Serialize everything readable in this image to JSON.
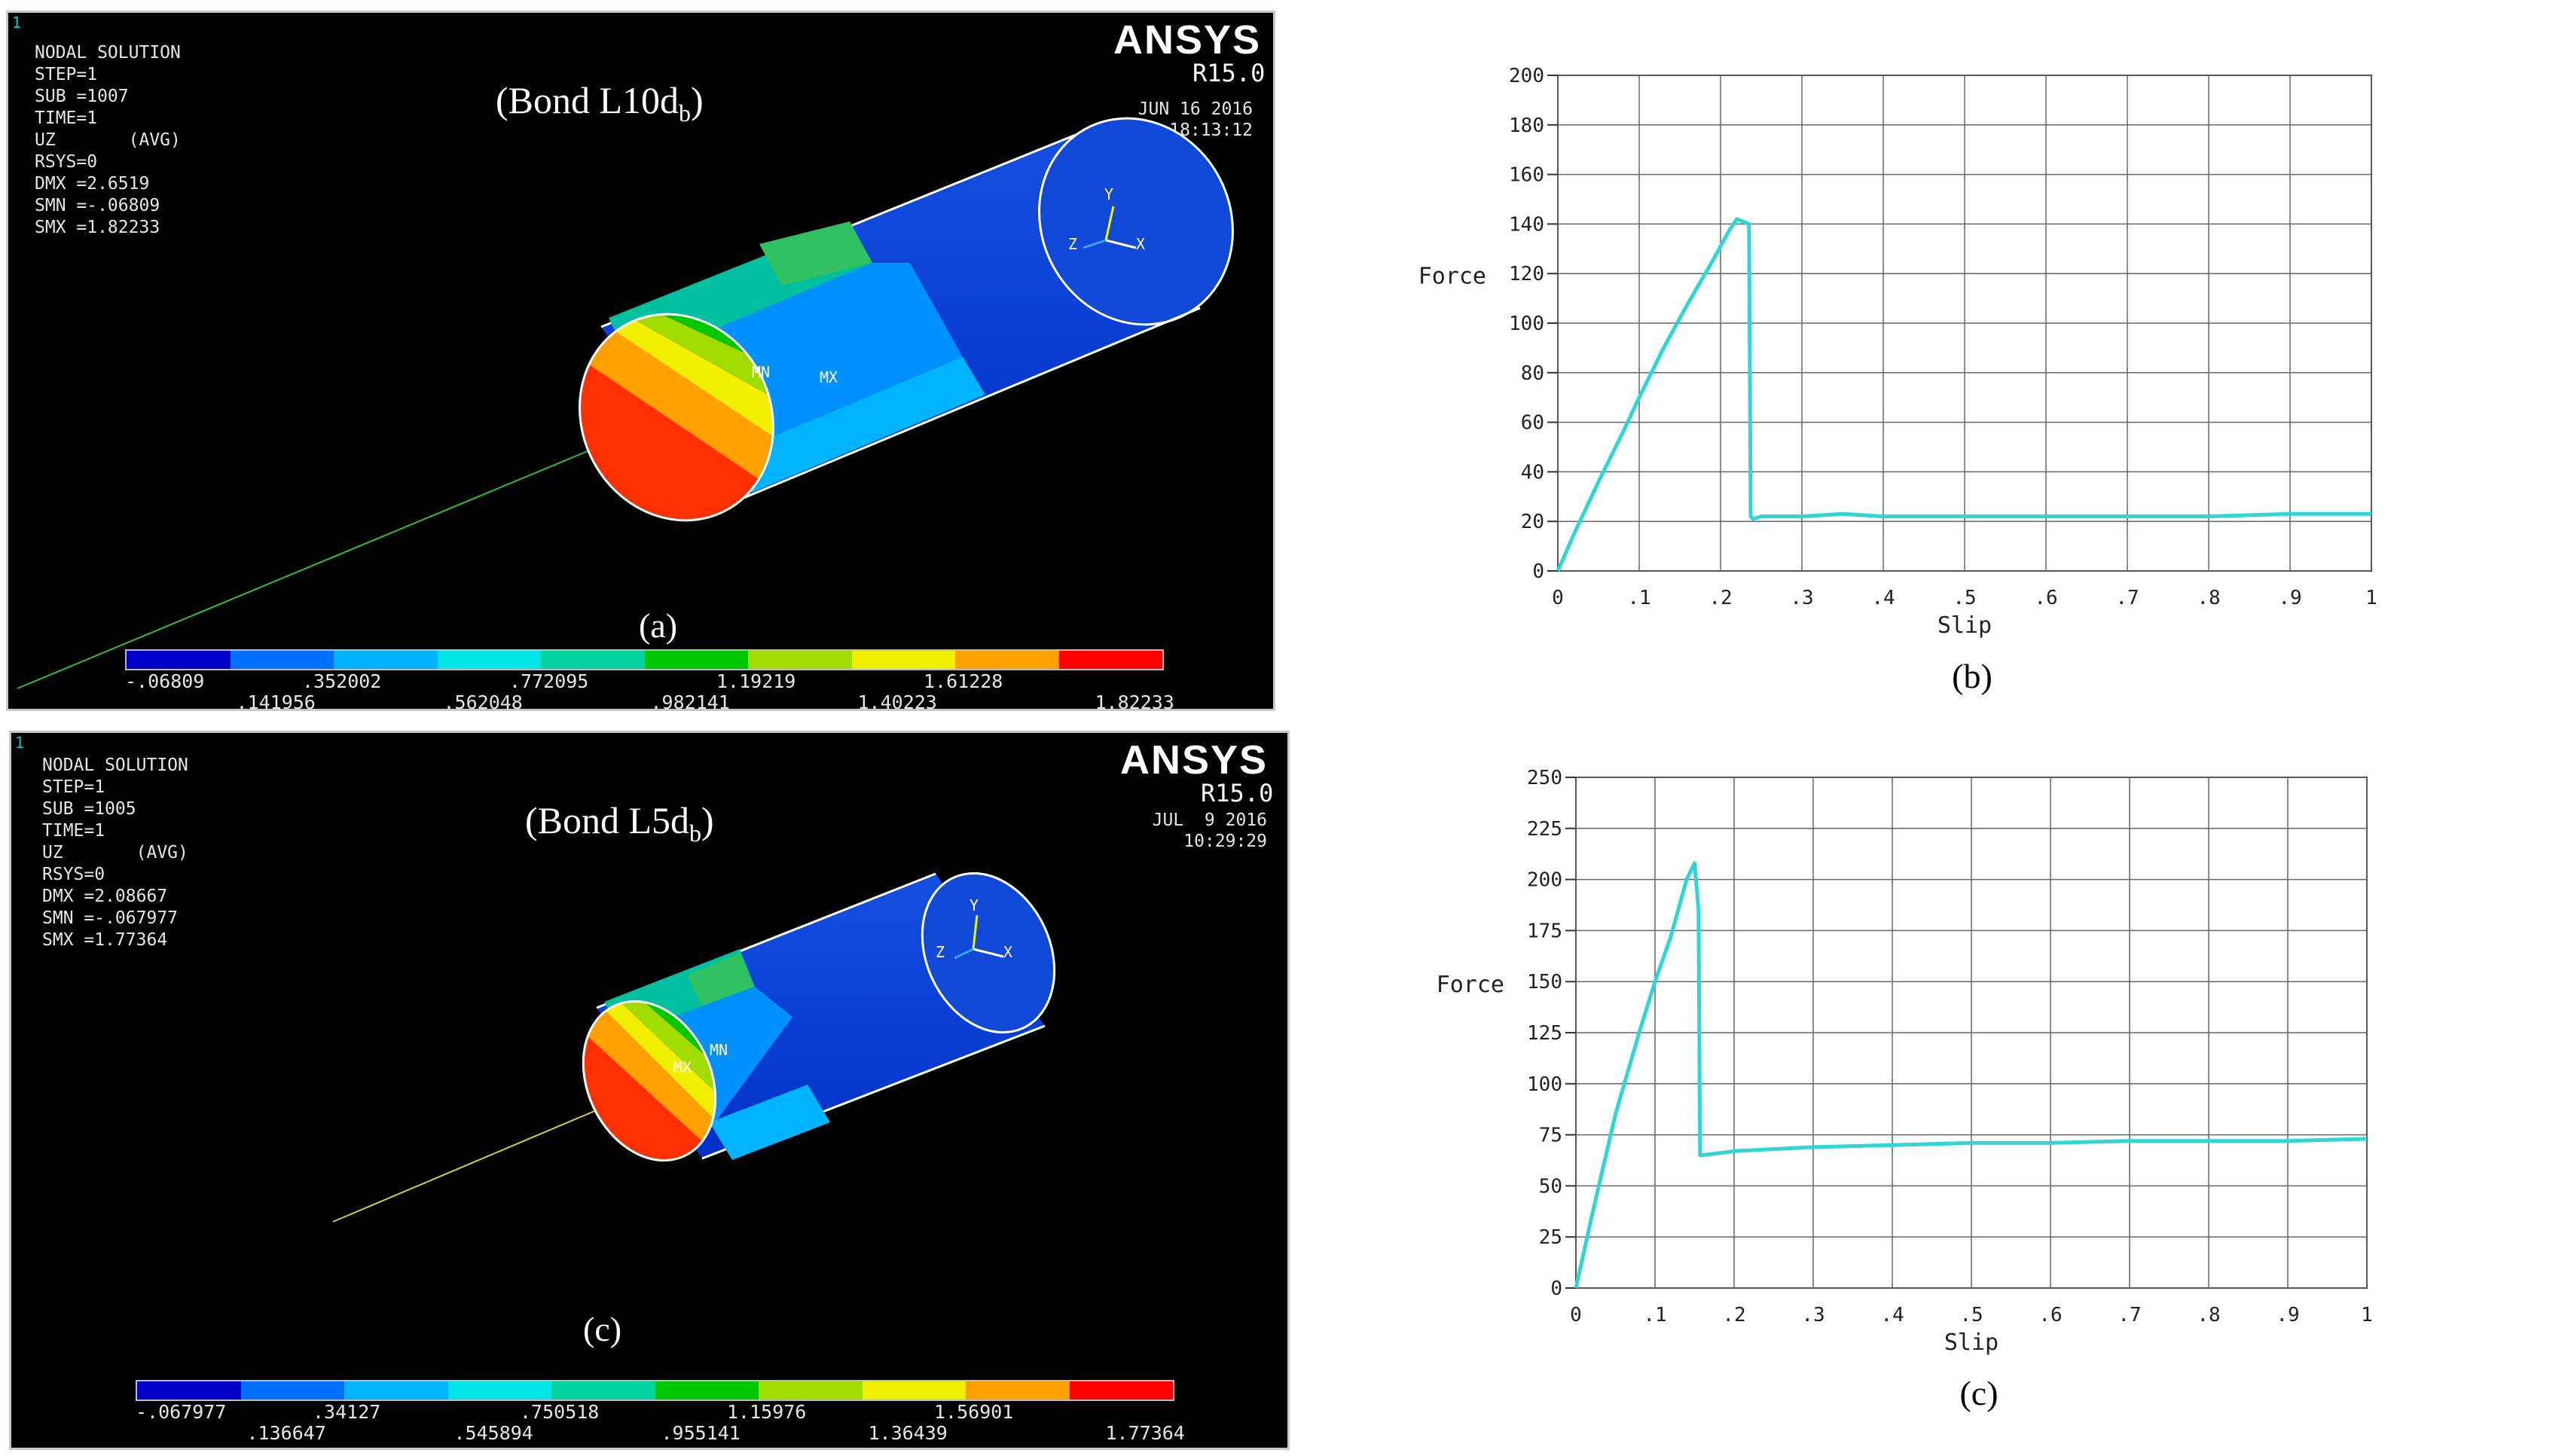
{
  "panel_a": {
    "corner_index": "1",
    "info": [
      "NODAL SOLUTION",
      "STEP=1",
      "SUB =1007",
      "TIME=1",
      "UZ       (AVG)",
      "RSYS=0",
      "DMX =2.6519",
      "SMN =-.06809",
      "SMX =1.82233"
    ],
    "brand": "ANSYS",
    "revision": "R15.0",
    "date": "JUN 16 2016",
    "time": "18:13:12",
    "title_main": "(Bond L10d",
    "title_sub": "b",
    "title_end": ")",
    "caption": "(a)",
    "mn_label": "MN",
    "mx_label": "MX",
    "axis_x": "X",
    "axis_y": "Y",
    "axis_z": "Z",
    "legend_values_top": [
      "-.06809",
      ".352002",
      ".772095",
      "1.19219",
      "1.61228"
    ],
    "legend_values_bottom": [
      ".141956",
      ".562048",
      ".982141",
      "1.40223",
      "1.82233"
    ]
  },
  "panel_c": {
    "corner_index": "1",
    "info": [
      "NODAL SOLUTION",
      "STEP=1",
      "SUB =1005",
      "TIME=1",
      "UZ       (AVG)",
      "RSYS=0",
      "DMX =2.08667",
      "SMN =-.067977",
      "SMX =1.77364"
    ],
    "brand": "ANSYS",
    "revision": "R15.0",
    "date": "JUL  9 2016",
    "time": "10:29:29",
    "title_main": "(Bond L5d",
    "title_sub": "b",
    "title_end": ")",
    "caption": "(c)",
    "mn_label": "MN",
    "mx_label": "MX",
    "axis_x": "X",
    "axis_y": "Y",
    "axis_z": "Z",
    "legend_values_top": [
      "-.067977",
      ".34127",
      ".750518",
      "1.15976",
      "1.56901"
    ],
    "legend_values_bottom": [
      ".136647",
      ".545894",
      ".955141",
      "1.36439",
      "1.77364"
    ]
  },
  "legend_colors": [
    "#0000c8",
    "#0070ff",
    "#00b4ff",
    "#00e6e6",
    "#00d2a0",
    "#00c800",
    "#a0dc00",
    "#f0f000",
    "#ffa000",
    "#ff0000"
  ],
  "chart_data": [
    {
      "type": "line",
      "caption": "(b)",
      "xlabel": "Slip",
      "ylabel": "Force",
      "xlim": [
        0,
        1
      ],
      "ylim": [
        0,
        200
      ],
      "x_ticks": [
        "0",
        ".1",
        ".2",
        ".3",
        ".4",
        ".5",
        ".6",
        ".7",
        ".8",
        ".9",
        "1"
      ],
      "y_ticks": [
        "0",
        "20",
        "40",
        "60",
        "80",
        "100",
        "120",
        "140",
        "160",
        "180",
        "200"
      ],
      "grid": true,
      "color": "#2ed6d6",
      "series": [
        {
          "x": [
            0,
            0.02,
            0.05,
            0.08,
            0.1,
            0.13,
            0.16,
            0.19,
            0.21,
            0.22,
            0.235,
            0.237,
            0.24,
            0.25,
            0.3,
            0.35,
            0.4,
            0.5,
            0.6,
            0.7,
            0.8,
            0.9,
            1.0
          ],
          "y": [
            0,
            15,
            36,
            56,
            70,
            90,
            108,
            125,
            137,
            142,
            140,
            22,
            21,
            22,
            22,
            23,
            22,
            22,
            22,
            22,
            22,
            23,
            23
          ]
        }
      ]
    },
    {
      "type": "line",
      "caption": "(c)",
      "xlabel": "Slip",
      "ylabel": "Force",
      "xlim": [
        0,
        1
      ],
      "ylim": [
        0,
        250
      ],
      "x_ticks": [
        "0",
        ".1",
        ".2",
        ".3",
        ".4",
        ".5",
        ".6",
        ".7",
        ".8",
        ".9",
        "1"
      ],
      "y_ticks": [
        "0",
        "25",
        "50",
        "75",
        "100",
        "125",
        "150",
        "175",
        "200",
        "225",
        "250"
      ],
      "grid": true,
      "color": "#2ed6d6",
      "series": [
        {
          "x": [
            0,
            0.02,
            0.05,
            0.08,
            0.1,
            0.12,
            0.14,
            0.15,
            0.155,
            0.157,
            0.16,
            0.18,
            0.2,
            0.3,
            0.4,
            0.5,
            0.6,
            0.7,
            0.8,
            0.9,
            1.0
          ],
          "y": [
            0,
            35,
            85,
            125,
            150,
            172,
            200,
            208,
            185,
            65,
            65,
            66,
            67,
            69,
            70,
            71,
            71,
            72,
            72,
            72,
            73
          ]
        }
      ]
    }
  ]
}
